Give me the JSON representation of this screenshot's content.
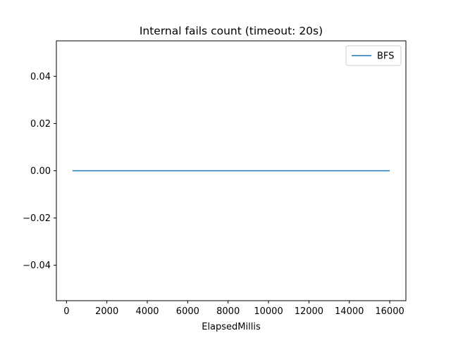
{
  "chart_data": {
    "type": "line",
    "title": "Internal fails count (timeout: 20s)",
    "xlabel": "ElapsedMillis",
    "ylabel": "",
    "xlim": [
      -500,
      16800
    ],
    "ylim": [
      -0.055,
      0.055
    ],
    "x_ticks": [
      0,
      2000,
      4000,
      6000,
      8000,
      10000,
      12000,
      14000,
      16000
    ],
    "x_tick_labels": [
      "0",
      "2000",
      "4000",
      "6000",
      "8000",
      "10000",
      "12000",
      "14000",
      "16000"
    ],
    "y_ticks": [
      -0.04,
      -0.02,
      0.0,
      0.02,
      0.04
    ],
    "y_tick_labels": [
      "−0.04",
      "−0.02",
      "0.00",
      "0.02",
      "0.04"
    ],
    "grid": false,
    "legend_position": "top-right",
    "series": [
      {
        "name": "BFS",
        "color": "#1f77b4",
        "x": [
          300,
          16000
        ],
        "y": [
          0,
          0
        ]
      }
    ]
  }
}
